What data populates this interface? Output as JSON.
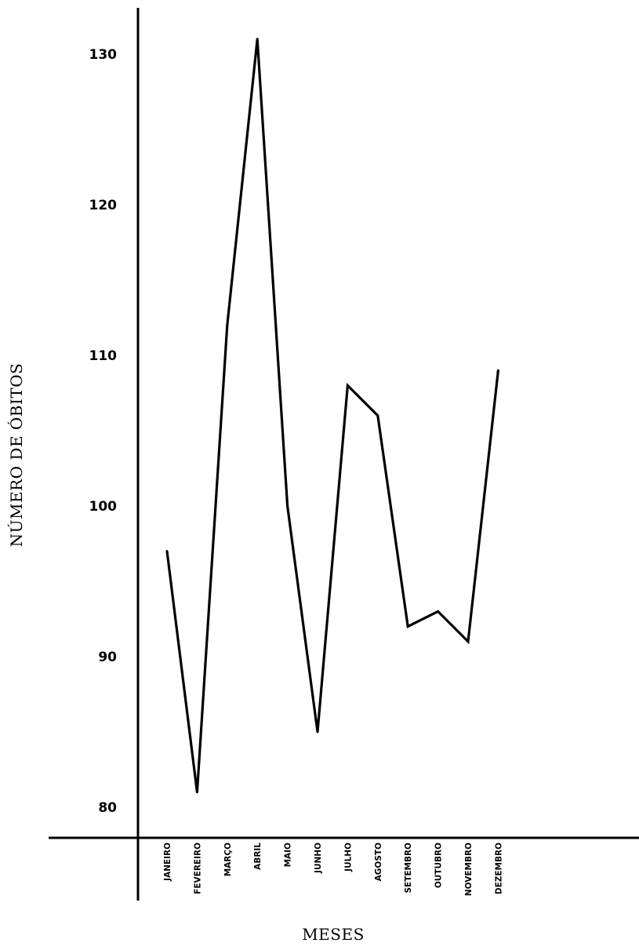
{
  "chart_data": {
    "type": "line",
    "title": "",
    "xlabel": "MESES",
    "ylabel": "NÚMERO DE ÓBITOS",
    "categories": [
      "JANEIRO",
      "FEVEREIRO",
      "MARÇO",
      "ABRIL",
      "MAIO",
      "JUNHO",
      "JULHO",
      "AGOSTO",
      "SETEMBRO",
      "OUTUBRO",
      "NOVEMBRO",
      "DEZEMBRO"
    ],
    "series": [
      {
        "values": [
          97,
          81,
          112,
          131,
          100,
          85,
          108,
          106,
          92,
          93,
          91,
          109
        ]
      }
    ],
    "yticks": [
      "80",
      "90",
      "100",
      "110",
      "120",
      "130"
    ],
    "ytick_values": [
      80,
      90,
      100,
      110,
      120,
      130
    ],
    "ylim": [
      77,
      134
    ],
    "grid": false,
    "legend": "none",
    "line_color": "#000000"
  }
}
